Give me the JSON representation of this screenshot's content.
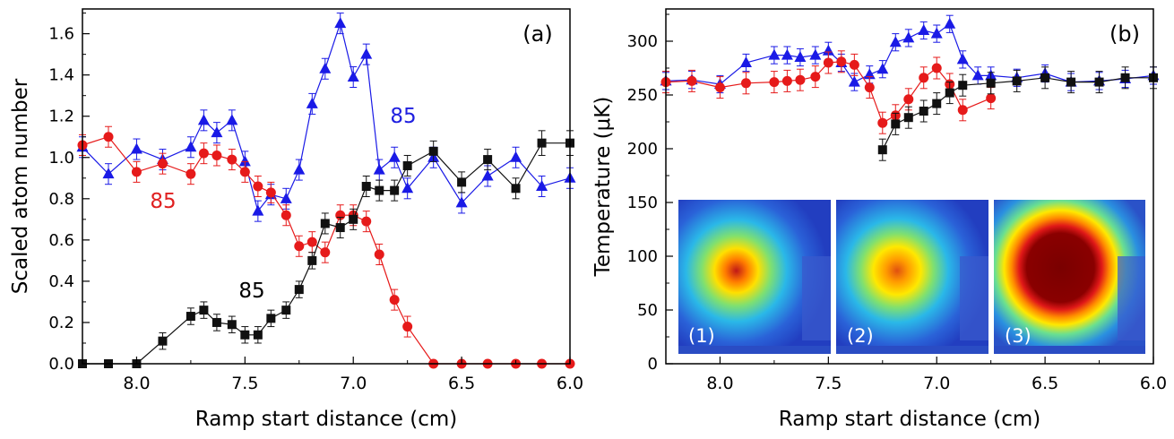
{
  "chart_data": [
    {
      "type": "scatter",
      "panel_label": "(a)",
      "xlabel": "Ramp start distance (cm)",
      "ylabel": "Scaled atom number",
      "xlim": [
        8.25,
        6.0
      ],
      "ylim": [
        0,
        1.72
      ],
      "xticks": [
        "8.0",
        "7.5",
        "7.0",
        "6.5",
        "6.0"
      ],
      "yticks": [
        "0.0",
        "0.2",
        "0.4",
        "0.6",
        "0.8",
        "1.0",
        "1.2",
        "1.4",
        "1.6"
      ],
      "annotations": [
        {
          "text": "85",
          "color": "#2020e0",
          "x": 6.8,
          "y": 1.27
        },
        {
          "text": "85",
          "color": "#e02020",
          "x": 8.13,
          "y": 0.79
        },
        {
          "text": "85",
          "color": "#000000",
          "x": 7.55,
          "y": 0.34
        }
      ],
      "series": [
        {
          "name": "blue triangles",
          "color": "#1a1ae6",
          "marker": "triangle",
          "x": [
            8.25,
            8.13,
            8.0,
            7.88,
            7.75,
            7.69,
            7.63,
            7.56,
            7.5,
            7.44,
            7.38,
            7.31,
            7.25,
            7.19,
            7.13,
            7.06,
            7.0,
            6.94,
            6.88,
            6.81,
            6.75,
            6.63,
            6.5,
            6.38,
            6.25,
            6.13,
            6.0
          ],
          "y": [
            1.05,
            0.92,
            1.04,
            0.99,
            1.05,
            1.18,
            1.12,
            1.18,
            0.98,
            0.74,
            0.82,
            0.8,
            0.94,
            1.26,
            1.43,
            1.65,
            1.39,
            1.5,
            0.94,
            1.0,
            0.85,
            1.0,
            0.78,
            0.91,
            1.0,
            0.86,
            0.9
          ],
          "err": [
            0.05,
            0.05,
            0.05,
            0.05,
            0.05,
            0.05,
            0.05,
            0.05,
            0.05,
            0.05,
            0.05,
            0.05,
            0.05,
            0.05,
            0.05,
            0.05,
            0.05,
            0.05,
            0.05,
            0.05,
            0.05,
            0.05,
            0.05,
            0.05,
            0.05,
            0.05,
            0.05
          ]
        },
        {
          "name": "red circles",
          "color": "#e61a1a",
          "marker": "circle",
          "x": [
            8.25,
            8.13,
            8.0,
            7.88,
            7.75,
            7.69,
            7.63,
            7.56,
            7.5,
            7.44,
            7.38,
            7.31,
            7.25,
            7.19,
            7.13,
            7.06,
            7.0,
            6.94,
            6.88,
            6.81,
            6.75,
            6.63,
            6.5,
            6.38,
            6.25,
            6.13,
            6.0
          ],
          "y": [
            1.06,
            1.1,
            0.93,
            0.97,
            0.92,
            1.02,
            1.01,
            0.99,
            0.93,
            0.86,
            0.83,
            0.72,
            0.57,
            0.59,
            0.54,
            0.72,
            0.72,
            0.69,
            0.53,
            0.31,
            0.18,
            0.0,
            0.0,
            0.0,
            0.0,
            0.0,
            0.0
          ],
          "err": [
            0.05,
            0.05,
            0.05,
            0.05,
            0.05,
            0.05,
            0.05,
            0.05,
            0.05,
            0.05,
            0.05,
            0.05,
            0.05,
            0.05,
            0.05,
            0.05,
            0.05,
            0.05,
            0.05,
            0.05,
            0.05,
            0,
            0,
            0,
            0,
            0,
            0
          ]
        },
        {
          "name": "black squares",
          "color": "#111111",
          "marker": "square",
          "x": [
            8.25,
            8.13,
            8.0,
            7.88,
            7.75,
            7.69,
            7.63,
            7.56,
            7.5,
            7.44,
            7.38,
            7.31,
            7.25,
            7.19,
            7.13,
            7.06,
            7.0,
            6.94,
            6.88,
            6.81,
            6.75,
            6.63,
            6.5,
            6.38,
            6.25,
            6.13,
            6.0
          ],
          "y": [
            0.0,
            0.0,
            0.0,
            0.11,
            0.23,
            0.26,
            0.2,
            0.19,
            0.14,
            0.14,
            0.22,
            0.26,
            0.36,
            0.5,
            0.68,
            0.66,
            0.7,
            0.86,
            0.84,
            0.84,
            0.96,
            1.03,
            0.88,
            0.99,
            0.85,
            1.07,
            1.07
          ],
          "err": [
            0,
            0,
            0,
            0.04,
            0.04,
            0.04,
            0.04,
            0.04,
            0.04,
            0.04,
            0.04,
            0.04,
            0.04,
            0.04,
            0.05,
            0.05,
            0.05,
            0.05,
            0.05,
            0.05,
            0.05,
            0.05,
            0.05,
            0.05,
            0.05,
            0.06,
            0.06
          ]
        }
      ]
    },
    {
      "type": "scatter",
      "panel_label": "(b)",
      "xlabel": "Ramp start distance (cm)",
      "ylabel": "Temperature (μK)",
      "xlim": [
        8.25,
        6.0
      ],
      "ylim": [
        0,
        330
      ],
      "xticks": [
        "8.0",
        "7.5",
        "7.0",
        "6.5",
        "6.0"
      ],
      "yticks": [
        "0",
        "50",
        "100",
        "150",
        "200",
        "250",
        "300"
      ],
      "inset_labels": [
        "(1)",
        "(2)",
        "(3)"
      ],
      "series": [
        {
          "name": "blue triangles",
          "color": "#1a1ae6",
          "marker": "triangle",
          "x": [
            8.25,
            8.13,
            8.0,
            7.88,
            7.75,
            7.69,
            7.63,
            7.56,
            7.5,
            7.44,
            7.38,
            7.31,
            7.25,
            7.19,
            7.13,
            7.06,
            7.0,
            6.94,
            6.88,
            6.81,
            6.75,
            6.63,
            6.5,
            6.38,
            6.25,
            6.13,
            6.0
          ],
          "y": [
            263,
            264,
            260,
            280,
            287,
            287,
            285,
            287,
            291,
            280,
            262,
            269,
            274,
            299,
            303,
            310,
            307,
            316,
            283,
            268,
            268,
            266,
            270,
            262,
            263,
            265,
            268
          ],
          "err": [
            8,
            8,
            8,
            8,
            8,
            8,
            8,
            8,
            8,
            8,
            8,
            8,
            8,
            8,
            8,
            8,
            8,
            8,
            8,
            8,
            8,
            8,
            8,
            8,
            8,
            8,
            8
          ]
        },
        {
          "name": "red circles",
          "color": "#e61a1a",
          "marker": "circle",
          "x": [
            8.25,
            8.13,
            8.0,
            7.88,
            7.75,
            7.69,
            7.63,
            7.56,
            7.5,
            7.44,
            7.38,
            7.31,
            7.25,
            7.19,
            7.13,
            7.06,
            7.0,
            6.94,
            6.88,
            6.75
          ],
          "y": [
            262,
            263,
            257,
            261,
            262,
            263,
            264,
            267,
            280,
            281,
            278,
            257,
            224,
            231,
            246,
            266,
            275,
            260,
            236,
            247
          ],
          "err": [
            10,
            10,
            10,
            10,
            10,
            10,
            10,
            10,
            10,
            10,
            10,
            10,
            10,
            10,
            10,
            10,
            10,
            10,
            10,
            10
          ]
        },
        {
          "name": "black squares",
          "color": "#111111",
          "marker": "square",
          "x": [
            7.25,
            7.19,
            7.13,
            7.06,
            7.0,
            6.94,
            6.88,
            6.75,
            6.63,
            6.5,
            6.38,
            6.25,
            6.13,
            6.0
          ],
          "y": [
            199,
            223,
            229,
            235,
            242,
            252,
            259,
            261,
            263,
            266,
            262,
            262,
            266,
            266
          ],
          "err": [
            10,
            10,
            10,
            10,
            10,
            10,
            10,
            10,
            10,
            10,
            10,
            10,
            10,
            10
          ]
        }
      ]
    }
  ]
}
